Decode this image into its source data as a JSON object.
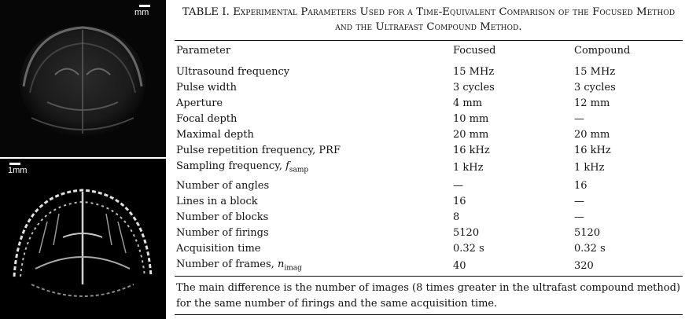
{
  "figure": {
    "top_image": {
      "scale_label": "mm"
    },
    "bottom_image": {
      "scale_label": "1mm"
    }
  },
  "table": {
    "caption_prefix": "TABLE I.",
    "caption_text": "Experimental Parameters Used for a Time-Equivalent Comparison of the Focused Method and the Ultrafast Compound Method.",
    "headers": [
      "Parameter",
      "Focused",
      "Compound"
    ],
    "rows": [
      {
        "parameter": "Ultrasound frequency",
        "focused": "15 MHz",
        "compound": "15 MHz"
      },
      {
        "parameter": "Pulse width",
        "focused": "3 cycles",
        "compound": "3 cycles"
      },
      {
        "parameter": "Aperture",
        "focused": "4 mm",
        "compound": "12 mm"
      },
      {
        "parameter": "Focal depth",
        "focused": "10 mm",
        "compound": "—"
      },
      {
        "parameter": "Maximal depth",
        "focused": "20 mm",
        "compound": "20 mm"
      },
      {
        "parameter": "Pulse repetition frequency, PRF",
        "focused": "16 kHz",
        "compound": "16 kHz"
      },
      {
        "parameter": "Sampling frequency, ",
        "parameter_math": "f",
        "parameter_sub": "samp",
        "focused": "1 kHz",
        "compound": "1 kHz"
      },
      {
        "parameter": "Number of angles",
        "focused": "—",
        "compound": "16"
      },
      {
        "parameter": "Lines in a block",
        "focused": "16",
        "compound": "—"
      },
      {
        "parameter": "Number of blocks",
        "focused": "8",
        "compound": "—"
      },
      {
        "parameter": "Number of firings",
        "focused": "5120",
        "compound": "5120"
      },
      {
        "parameter": "Acquisition time",
        "focused": "0.32 s",
        "compound": "0.32 s"
      },
      {
        "parameter": "Number of frames, ",
        "parameter_math": "n",
        "parameter_sub": "imag",
        "focused": "40",
        "compound": "320"
      }
    ],
    "footnote": "The main difference is the number of images (8 times greater in the ultrafast compound method) for the same number of firings and the same acquisition time."
  }
}
